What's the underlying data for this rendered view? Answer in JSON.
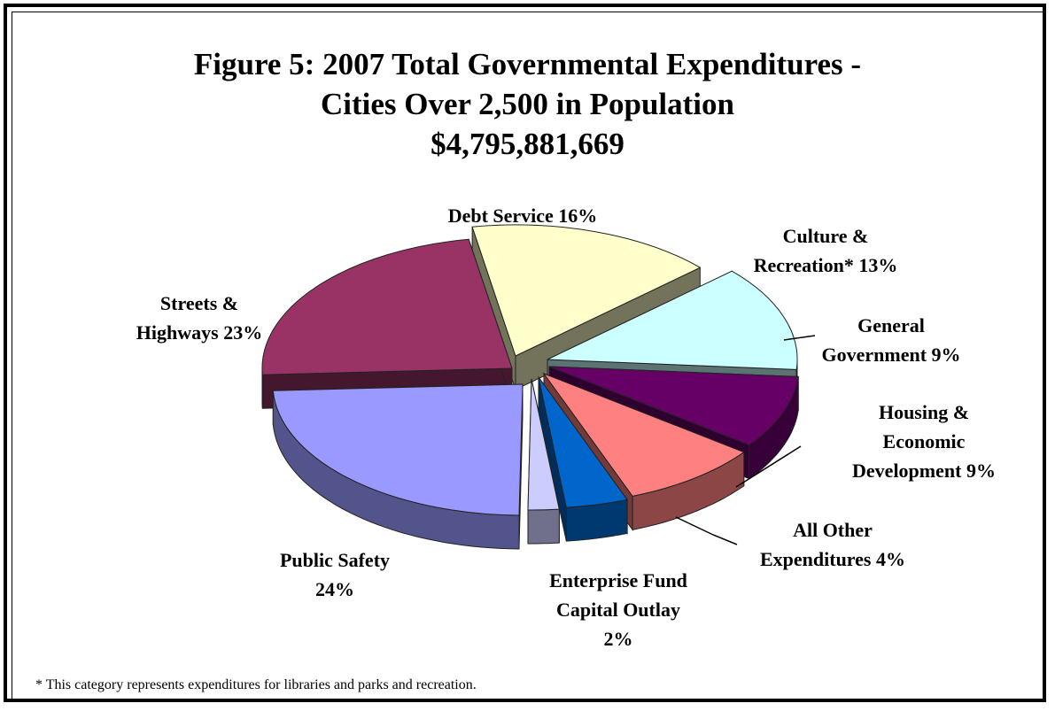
{
  "chart_data": {
    "type": "pie",
    "title": [
      "Figure 5:  2007 Total Governmental Expenditures -",
      "Cities Over 2,500 in Population",
      "$4,795,881,669"
    ],
    "unit": "%",
    "slices": [
      {
        "id": "debt-service",
        "lines": [
          "Debt Service 16%"
        ],
        "value": 16,
        "color": "#FFFFCC"
      },
      {
        "id": "culture-recreation",
        "lines": [
          "Culture &",
          "Recreation* 13%"
        ],
        "value": 13,
        "color": "#CCFFFF"
      },
      {
        "id": "general-government",
        "lines": [
          "General",
          "Government 9%"
        ],
        "value": 9,
        "color": "#660066"
      },
      {
        "id": "housing-economic-development",
        "lines": [
          "Housing &",
          "Economic",
          "Development 9%"
        ],
        "value": 9,
        "color": "#FF8080"
      },
      {
        "id": "all-other-expenditures",
        "lines": [
          "All Other",
          "Expenditures 4%"
        ],
        "value": 4,
        "color": "#0066CC"
      },
      {
        "id": "enterprise-fund-capital-outlay",
        "lines": [
          "Enterprise Fund",
          "Capital Outlay",
          "2%"
        ],
        "value": 2,
        "color": "#CCCCFF"
      },
      {
        "id": "public-safety",
        "lines": [
          "Public Safety",
          "24%"
        ],
        "value": 24,
        "color": "#9999FF"
      },
      {
        "id": "streets-highways",
        "lines": [
          "Streets &",
          "Highways 23%"
        ],
        "value": 23,
        "color": "#993366"
      }
    ]
  },
  "footnote": "* This category represents expenditures for libraries and parks and recreation."
}
